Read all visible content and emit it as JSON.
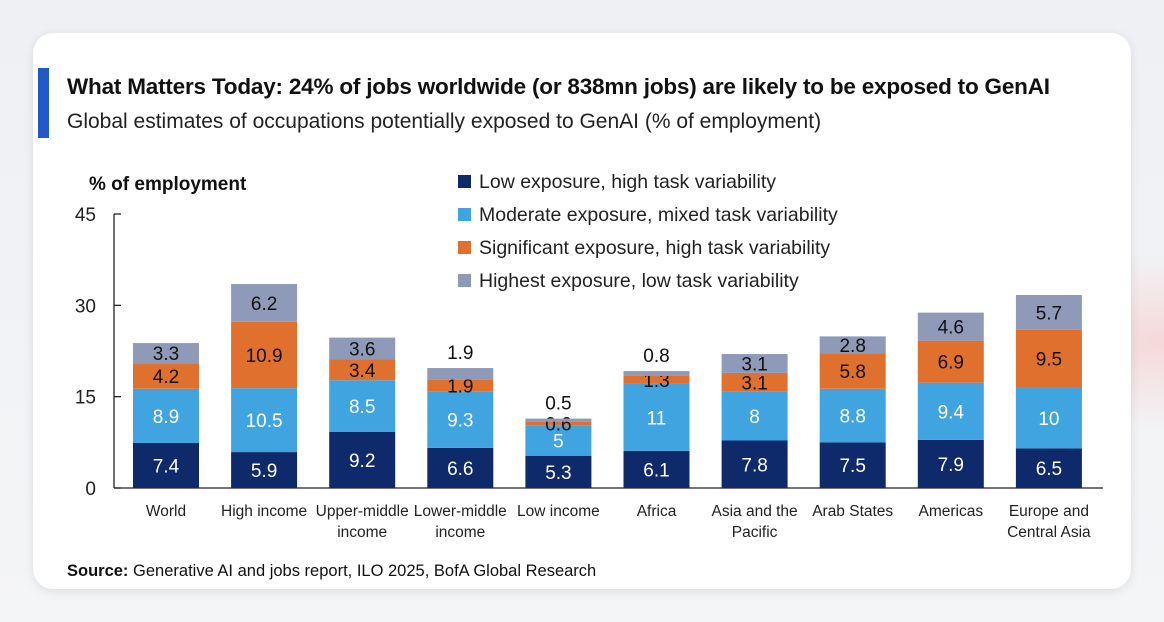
{
  "header": {
    "title": "What Matters Today: 24% of jobs worldwide (or 838mn jobs) are likely to be exposed to GenAI",
    "subtitle": "Global estimates of occupations potentially exposed to GenAI (% of employment)"
  },
  "footer": {
    "source_label": "Source:",
    "source_text": "Generative AI and jobs report, ILO 2025, BofA Global Research"
  },
  "chart_data": {
    "type": "bar",
    "stacked": true,
    "ylabel": "% of employment",
    "ylim": [
      0,
      45
    ],
    "yticks": [
      0,
      15,
      30,
      45
    ],
    "grid": false,
    "legend_position": "top",
    "categories": [
      [
        "World"
      ],
      [
        "High income"
      ],
      [
        "Upper-middle",
        "income"
      ],
      [
        "Lower-middle",
        "income"
      ],
      [
        "Low income"
      ],
      [
        "Africa"
      ],
      [
        "Asia and the",
        "Pacific"
      ],
      [
        "Arab States"
      ],
      [
        "Americas"
      ],
      [
        "Europe and",
        "Central Asia"
      ]
    ],
    "series": [
      {
        "name": "Low exposure, high task variability",
        "color": "#0e2a6b",
        "label_color": "#ffffff",
        "values": [
          7.4,
          5.9,
          9.2,
          6.6,
          5.3,
          6.1,
          7.8,
          7.5,
          7.9,
          6.5
        ]
      },
      {
        "name": "Moderate exposure, mixed task variability",
        "color": "#3fa4e0",
        "label_color": "#ffffff",
        "values": [
          8.9,
          10.5,
          8.5,
          9.3,
          5,
          11,
          8,
          8.8,
          9.4,
          10
        ]
      },
      {
        "name": "Significant exposure, high task variability",
        "color": "#e0702e",
        "label_color": "#111111",
        "values": [
          4.2,
          10.9,
          3.4,
          1.9,
          0.6,
          1.3,
          3.1,
          5.8,
          6.9,
          9.5
        ]
      },
      {
        "name": "Highest exposure, low task variability",
        "color": "#8f9ab8",
        "label_color": "#111111",
        "values": [
          3.3,
          6.2,
          3.6,
          1.9,
          0.5,
          0.8,
          3.1,
          2.8,
          4.6,
          5.7
        ]
      }
    ]
  }
}
